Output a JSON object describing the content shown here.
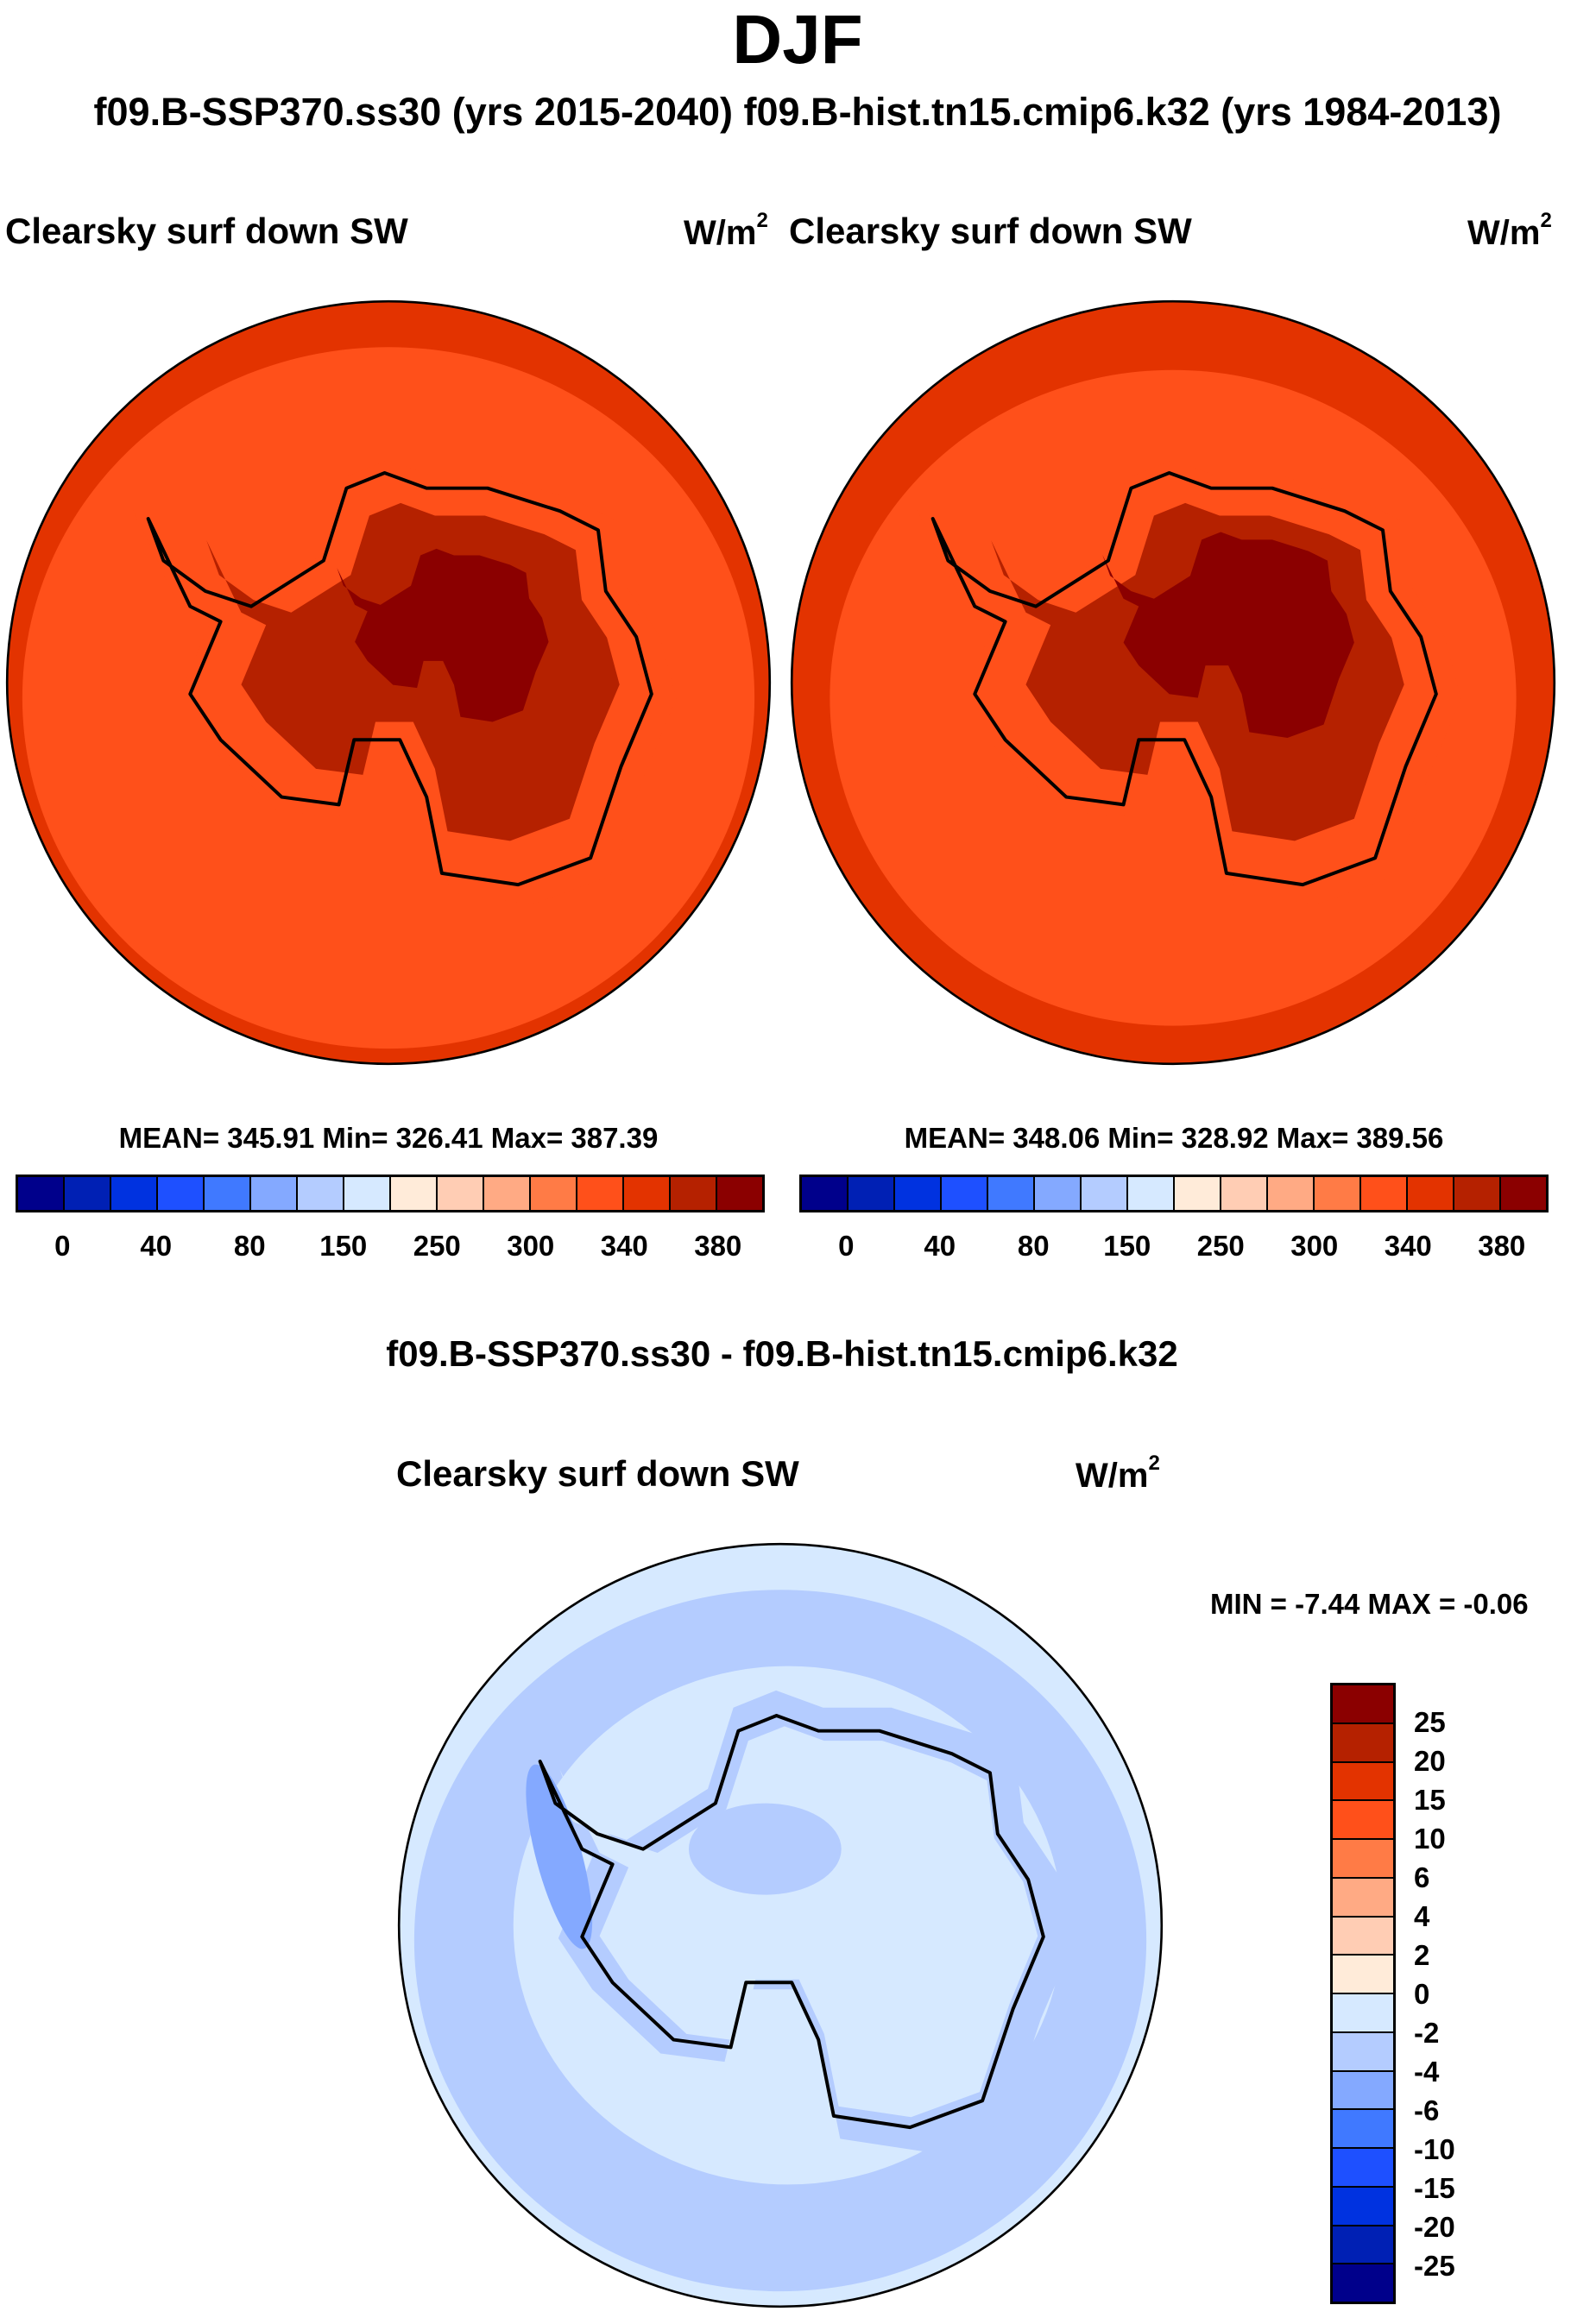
{
  "title": "DJF",
  "subtitle": "f09.B-SSP370.ss30 (yrs 2015-2040)  f09.B-hist.tn15.cmip6.k32 (yrs 1984-2013)",
  "chart_data": {
    "type": "heatmap",
    "projection": "south polar stereographic",
    "panels": [
      {
        "title": "Clearsky surf down SW",
        "units_base": "W/m",
        "units_exp": "2",
        "stats": "MEAN= 345.91  Min= 326.41  Max= 387.39",
        "mean": 345.91,
        "min": 326.41,
        "max": 387.39,
        "colorbar_labels": [
          "0",
          "40",
          "80",
          "150",
          "250",
          "300",
          "340",
          "380"
        ],
        "field_colors": {
          "edge": "#e33300",
          "ocean": "#ff501a",
          "coast": "#b52100",
          "interior": "#8b0000"
        }
      },
      {
        "title": "Clearsky surf down SW",
        "units_base": "W/m",
        "units_exp": "2",
        "stats": "MEAN= 348.06  Min= 328.92  Max= 389.56",
        "mean": 348.06,
        "min": 328.92,
        "max": 389.56,
        "colorbar_labels": [
          "0",
          "40",
          "80",
          "150",
          "250",
          "300",
          "340",
          "380"
        ],
        "field_colors": {
          "edge": "#e33300",
          "ocean": "#ff501a",
          "coast": "#b52100",
          "interior": "#8b0000"
        }
      },
      {
        "heading": "f09.B-SSP370.ss30 - f09.B-hist.tn15.cmip6.k32",
        "title": "Clearsky surf down SW",
        "units_base": "W/m",
        "units_exp": "2",
        "stats": "MIN =  -7.44 MAX =  -0.06",
        "min": -7.44,
        "max": -0.06,
        "colorbar_labels": [
          "25",
          "20",
          "15",
          "10",
          "6",
          "4",
          "2",
          "0",
          "-2",
          "-4",
          "-6",
          "-10",
          "-15",
          "-20",
          "-25"
        ],
        "field_colors": {
          "edge": "#d6e9ff",
          "ocean": "#b4ccff",
          "coast": "#d6e9ff",
          "interior": "#b4ccff",
          "peninsula": "#84a9ff"
        }
      }
    ],
    "colorbar_colors": [
      "#00008b",
      "#0020b4",
      "#0032e0",
      "#1e50ff",
      "#4079ff",
      "#84a9ff",
      "#b4ccff",
      "#d6e9ff",
      "#ffebd9",
      "#ffcdb4",
      "#ffaa84",
      "#ff7b46",
      "#ff501a",
      "#e33300",
      "#b52100",
      "#8b0000"
    ]
  }
}
